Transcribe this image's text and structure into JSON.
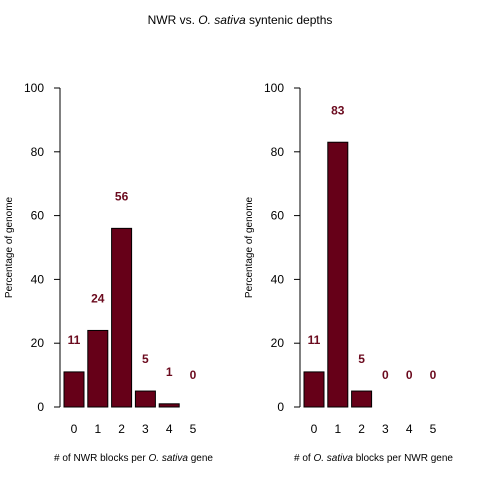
{
  "figure": {
    "title_prefix": "NWR vs. ",
    "title_italic": "O. sativa",
    "title_suffix": " syntenic depths"
  },
  "colors": {
    "bar_fill": "#660018",
    "label": "#6b0a1e"
  },
  "chart_data": [
    {
      "type": "bar",
      "title": "",
      "categories": [
        "0",
        "1",
        "2",
        "3",
        "4",
        "5"
      ],
      "values": [
        11,
        24,
        56,
        5,
        1,
        0
      ],
      "data_labels": [
        "11",
        "24",
        "56",
        "5",
        "1",
        "0"
      ],
      "ylabel": "Percentage of genome",
      "xlabel_prefix": "# of NWR blocks per ",
      "xlabel_italic": "O. sativa",
      "xlabel_suffix": " gene",
      "ylim": [
        0,
        100
      ],
      "yticks": [
        "0",
        "20",
        "40",
        "60",
        "80",
        "100"
      ],
      "grid": false
    },
    {
      "type": "bar",
      "title": "",
      "categories": [
        "0",
        "1",
        "2",
        "3",
        "4",
        "5"
      ],
      "values": [
        11,
        83,
        5,
        0,
        0,
        0
      ],
      "data_labels": [
        "11",
        "83",
        "5",
        "0",
        "0",
        "0"
      ],
      "ylabel": "Percentage of genome",
      "xlabel_prefix": "# of ",
      "xlabel_italic": "O. sativa",
      "xlabel_suffix": " blocks per NWR gene",
      "ylim": [
        0,
        100
      ],
      "yticks": [
        "0",
        "20",
        "40",
        "60",
        "80",
        "100"
      ],
      "grid": false
    }
  ]
}
